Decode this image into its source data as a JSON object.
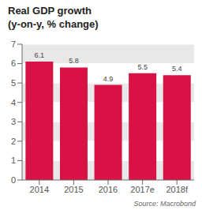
{
  "chart_data": {
    "type": "bar",
    "title": "Real GDP growth",
    "subtitle": "(y-on-y, % change)",
    "annotations": [
      "Source: Macrobond"
    ],
    "categories": [
      "2014",
      "2015",
      "2016",
      "2017e",
      "2018f"
    ],
    "values": [
      6.1,
      5.8,
      4.9,
      5.5,
      5.4
    ],
    "color": "#d81245",
    "ylim": [
      0,
      7
    ],
    "yticks": [
      0,
      1,
      2,
      3,
      4,
      5,
      6,
      7
    ],
    "grid": true,
    "data_labels": true
  }
}
